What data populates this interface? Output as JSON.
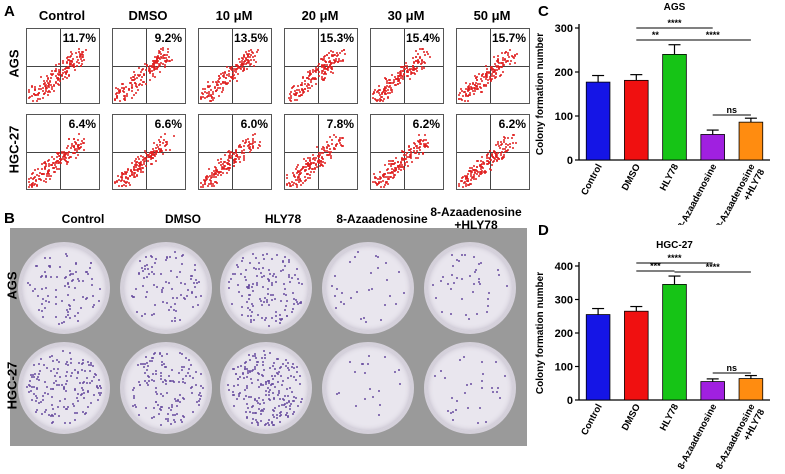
{
  "panels": {
    "A": "A",
    "B": "B",
    "C": "C",
    "D": "D"
  },
  "flow": {
    "columns": [
      "Control",
      "DMSO",
      "10 μM",
      "20 μM",
      "30 μM",
      "50 μM"
    ],
    "rows": [
      "AGS",
      "HGC-27"
    ],
    "percentages": [
      [
        "11.7%",
        "9.2%",
        "13.5%",
        "15.3%",
        "15.4%",
        "15.7%"
      ],
      [
        "6.4%",
        "6.6%",
        "6.0%",
        "7.8%",
        "6.2%",
        "6.2%"
      ]
    ]
  },
  "plates": {
    "columns": [
      "Control",
      "DMSO",
      "HLY78",
      "8-Azaadenosine",
      "8-Azaadenosine\n+HLY78"
    ],
    "rows": [
      "AGS",
      "HGC-27"
    ]
  },
  "chart_data": [
    {
      "type": "bar",
      "title": "AGS",
      "ylabel": "Colony formation number",
      "categories": [
        "Control",
        "DMSO",
        "HLY78",
        "8-Azaadenosine",
        "8-Azaadenosine\n+HLY78"
      ],
      "values": [
        177,
        181,
        240,
        58,
        86
      ],
      "errors": [
        15,
        13,
        22,
        10,
        9
      ],
      "colors": [
        "#1515e6",
        "#f01010",
        "#16c416",
        "#a020e0",
        "#ff8c10"
      ],
      "ylim": [
        0,
        300
      ],
      "yticks": [
        0,
        100,
        200,
        300
      ],
      "significance": [
        {
          "from": 1,
          "to": 3,
          "label": "****"
        },
        {
          "from": 1,
          "to": 2,
          "label": "**"
        },
        {
          "from": 2,
          "to": 4,
          "label": "****"
        },
        {
          "from": 3,
          "to": 4,
          "label": "ns"
        }
      ]
    },
    {
      "type": "bar",
      "title": "HGC-27",
      "ylabel": "Colony formation number",
      "categories": [
        "Control",
        "DMSO",
        "HLY78",
        "8-Azaadenosine",
        "8-Azaadenosine\n+HLY78"
      ],
      "values": [
        255,
        265,
        345,
        55,
        64
      ],
      "errors": [
        18,
        14,
        25,
        8,
        9
      ],
      "colors": [
        "#1515e6",
        "#f01010",
        "#16c416",
        "#a020e0",
        "#ff8c10"
      ],
      "ylim": [
        0,
        400
      ],
      "yticks": [
        0,
        100,
        200,
        300,
        400
      ],
      "significance": [
        {
          "from": 1,
          "to": 3,
          "label": "****"
        },
        {
          "from": 1,
          "to": 2,
          "label": "***"
        },
        {
          "from": 2,
          "to": 4,
          "label": "****"
        },
        {
          "from": 3,
          "to": 4,
          "label": "ns"
        }
      ]
    }
  ]
}
